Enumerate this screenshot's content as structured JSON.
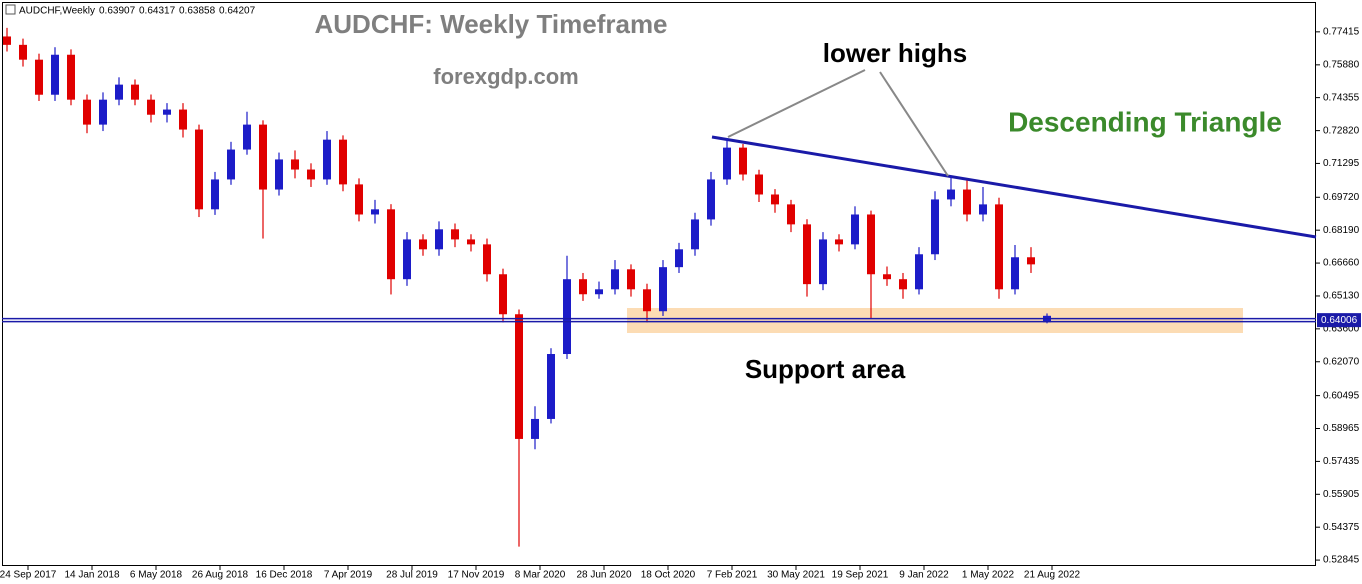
{
  "chart_data": {
    "type": "candlestick",
    "header_symbol": "AUDCHF,Weekly",
    "header_ohlc": [
      0.63907,
      0.64317,
      0.63858,
      0.64207
    ],
    "title": "AUDCHF: Weekly Timeframe",
    "subtitle": "forexgdp.com",
    "annotations": [
      "lower highs",
      "Descending Triangle",
      "Support area"
    ],
    "x_labels": [
      "24 Sep 2017",
      "14 Jan 2018",
      "6 May 2018",
      "26 Aug 2018",
      "16 Dec 2018",
      "7 Apr 2019",
      "28 Jul 2019",
      "17 Nov 2019",
      "8 Mar 2020",
      "28 Jun 2020",
      "18 Oct 2020",
      "7 Feb 2021",
      "30 May 2021",
      "19 Sep 2021",
      "9 Jan 2022",
      "1 May 2022",
      "21 Aug 2022"
    ],
    "open": [
      0.772,
      0.7681,
      0.7612,
      0.7449,
      0.7635,
      0.7426,
      0.731,
      0.7426,
      0.7496,
      0.7426,
      0.7356,
      0.738,
      0.7287,
      0.6916,
      0.7055,
      0.7194,
      0.731,
      0.7008,
      0.7148,
      0.7101,
      0.7055,
      0.724,
      0.7032,
      0.6892,
      0.6916,
      0.6591,
      0.6776,
      0.673,
      0.6823,
      0.6776,
      0.6753,
      0.6614,
      0.6428,
      0.5848,
      0.5941,
      0.6243,
      0.6591,
      0.6521,
      0.6544,
      0.6637,
      0.6544,
      0.6442,
      0.6647,
      0.673,
      0.6869,
      0.7055,
      0.7203,
      0.7078,
      0.6985,
      0.6939,
      0.6846,
      0.6568,
      0.6776,
      0.6753,
      0.6892,
      0.6614,
      0.6591,
      0.6544,
      0.6707,
      0.6962,
      0.7008,
      0.6892,
      0.6939,
      0.6544,
      0.6693,
      0.63907
    ],
    "high": [
      0.776,
      0.771,
      0.764,
      0.767,
      0.766,
      0.745,
      0.746,
      0.753,
      0.752,
      0.745,
      0.741,
      0.741,
      0.731,
      0.709,
      0.723,
      0.737,
      0.733,
      0.718,
      0.719,
      0.713,
      0.728,
      0.726,
      0.706,
      0.696,
      0.694,
      0.681,
      0.68,
      0.686,
      0.685,
      0.68,
      0.678,
      0.664,
      0.645,
      0.6,
      0.627,
      0.67,
      0.662,
      0.658,
      0.668,
      0.666,
      0.657,
      0.668,
      0.676,
      0.69,
      0.709,
      0.7245,
      0.722,
      0.71,
      0.701,
      0.696,
      0.687,
      0.681,
      0.68,
      0.693,
      0.691,
      0.665,
      0.662,
      0.674,
      0.7,
      0.707,
      0.705,
      0.702,
      0.697,
      0.675,
      0.674,
      0.64317
    ],
    "low": [
      0.765,
      0.758,
      0.742,
      0.742,
      0.74,
      0.727,
      0.728,
      0.74,
      0.74,
      0.732,
      0.732,
      0.725,
      0.688,
      0.689,
      0.703,
      0.717,
      0.678,
      0.698,
      0.706,
      0.702,
      0.703,
      0.7,
      0.686,
      0.685,
      0.652,
      0.656,
      0.67,
      0.67,
      0.674,
      0.672,
      0.658,
      0.639,
      0.5347,
      0.58,
      0.592,
      0.622,
      0.649,
      0.65,
      0.652,
      0.651,
      0.639,
      0.642,
      0.662,
      0.67,
      0.684,
      0.703,
      0.705,
      0.695,
      0.69,
      0.681,
      0.651,
      0.654,
      0.672,
      0.673,
      0.641,
      0.656,
      0.65,
      0.652,
      0.668,
      0.693,
      0.686,
      0.686,
      0.65,
      0.652,
      0.662,
      0.63858
    ],
    "close": [
      0.7681,
      0.7612,
      0.7449,
      0.7635,
      0.7426,
      0.731,
      0.7426,
      0.7496,
      0.7426,
      0.7356,
      0.738,
      0.7287,
      0.6916,
      0.7055,
      0.7194,
      0.731,
      0.7008,
      0.7148,
      0.7101,
      0.7055,
      0.724,
      0.7032,
      0.6892,
      0.6916,
      0.6591,
      0.6776,
      0.673,
      0.6823,
      0.6776,
      0.6753,
      0.6614,
      0.6428,
      0.5848,
      0.5941,
      0.6243,
      0.6591,
      0.6521,
      0.6544,
      0.6637,
      0.6544,
      0.6442,
      0.6647,
      0.673,
      0.6869,
      0.7055,
      0.7203,
      0.7078,
      0.6985,
      0.6939,
      0.6846,
      0.6568,
      0.6776,
      0.6753,
      0.6892,
      0.6614,
      0.6591,
      0.6544,
      0.6707,
      0.6962,
      0.7008,
      0.6892,
      0.6939,
      0.6544,
      0.6693,
      0.666,
      0.64207
    ],
    "up_color": "#1c1cc8",
    "down_color": "#e00000",
    "current_price": 0.64006,
    "ylim": [
      0.5257,
      0.7871
    ],
    "yticks": [
      0.77415,
      {
        "value": 0.7588,
        "label": "0.75880"
      },
      0.74355,
      {
        "value": 0.7282,
        "label": "0.72820"
      },
      0.71295,
      {
        "value": 0.6972,
        "label": "0.69720"
      },
      {
        "value": 0.6819,
        "label": "0.68190"
      },
      {
        "value": 0.6666,
        "label": "0.66660"
      },
      {
        "value": 0.6513,
        "label": "0.65130"
      },
      {
        "value": 0.636,
        "label": "0.63600"
      },
      {
        "value": 0.6207,
        "label": "0.62070"
      },
      0.60495,
      0.58965,
      0.57435,
      0.55905,
      0.54375,
      0.52845
    ]
  }
}
